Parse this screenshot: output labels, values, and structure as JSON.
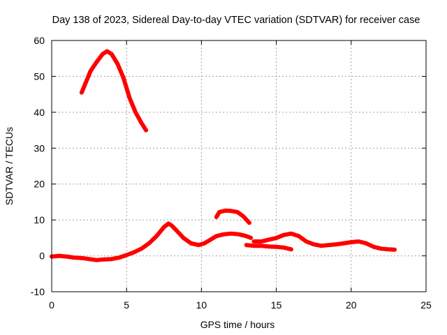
{
  "chart_data": {
    "type": "line",
    "title": "Day 138 of 2023, Sidereal Day-to-day VTEC variation (SDTVAR) for receiver case",
    "xlabel": "GPS time / hours",
    "ylabel": "SDTVAR / TECUs",
    "xlim": [
      0,
      25
    ],
    "ylim": [
      -10,
      60
    ],
    "xticks": [
      0,
      5,
      10,
      15,
      20,
      25
    ],
    "yticks": [
      -10,
      0,
      10,
      20,
      30,
      40,
      50,
      60
    ],
    "grid": true,
    "series_color": "#ff0000",
    "series": [
      {
        "name": "arc-high",
        "x": [
          2.0,
          2.3,
          2.6,
          3.0,
          3.4,
          3.7,
          4.0,
          4.4,
          4.8,
          5.2,
          5.6,
          6.0,
          6.3
        ],
        "y": [
          45.5,
          48.5,
          51.5,
          54.0,
          56.2,
          57.0,
          56.2,
          53.5,
          49.5,
          44.0,
          40.0,
          37.0,
          35.0
        ]
      },
      {
        "name": "baseline-main",
        "x": [
          0.0,
          0.5,
          1.0,
          1.5,
          2.0,
          2.5,
          3.0,
          3.5,
          4.0,
          4.5,
          5.0,
          5.5,
          6.0,
          6.5,
          7.0,
          7.5,
          7.8,
          8.0,
          8.3,
          8.8,
          9.3,
          9.8,
          10.2,
          10.6,
          11.0,
          11.5,
          12.0,
          12.5,
          13.0,
          13.3
        ],
        "y": [
          -0.2,
          0.0,
          -0.2,
          -0.5,
          -0.6,
          -0.9,
          -1.2,
          -1.0,
          -0.9,
          -0.5,
          0.2,
          1.0,
          2.0,
          3.5,
          5.5,
          8.0,
          9.0,
          8.5,
          7.2,
          5.0,
          3.5,
          3.0,
          3.5,
          4.5,
          5.5,
          6.0,
          6.2,
          6.0,
          5.5,
          5.0
        ]
      },
      {
        "name": "baseline-late",
        "x": [
          13.5,
          14.0,
          14.5,
          15.0,
          15.5,
          16.0,
          16.5,
          17.0,
          17.5,
          18.0,
          18.5,
          19.0,
          19.5,
          20.0,
          20.5,
          21.0,
          21.5,
          22.0,
          22.5,
          22.9
        ],
        "y": [
          4.0,
          4.0,
          4.5,
          5.0,
          5.8,
          6.2,
          5.5,
          4.0,
          3.2,
          2.8,
          3.0,
          3.2,
          3.5,
          3.8,
          4.0,
          3.5,
          2.5,
          2.0,
          1.8,
          1.7
        ]
      },
      {
        "name": "arc-mid",
        "x": [
          11.0,
          11.2,
          11.6,
          12.0,
          12.4,
          12.8,
          13.2
        ],
        "y": [
          10.8,
          12.2,
          12.6,
          12.5,
          12.2,
          11.0,
          9.2
        ]
      },
      {
        "name": "arc-low",
        "x": [
          13.0,
          13.5,
          14.0,
          14.5,
          15.0,
          15.5,
          16.0
        ],
        "y": [
          3.0,
          2.8,
          2.8,
          2.6,
          2.5,
          2.3,
          1.8
        ]
      }
    ]
  }
}
